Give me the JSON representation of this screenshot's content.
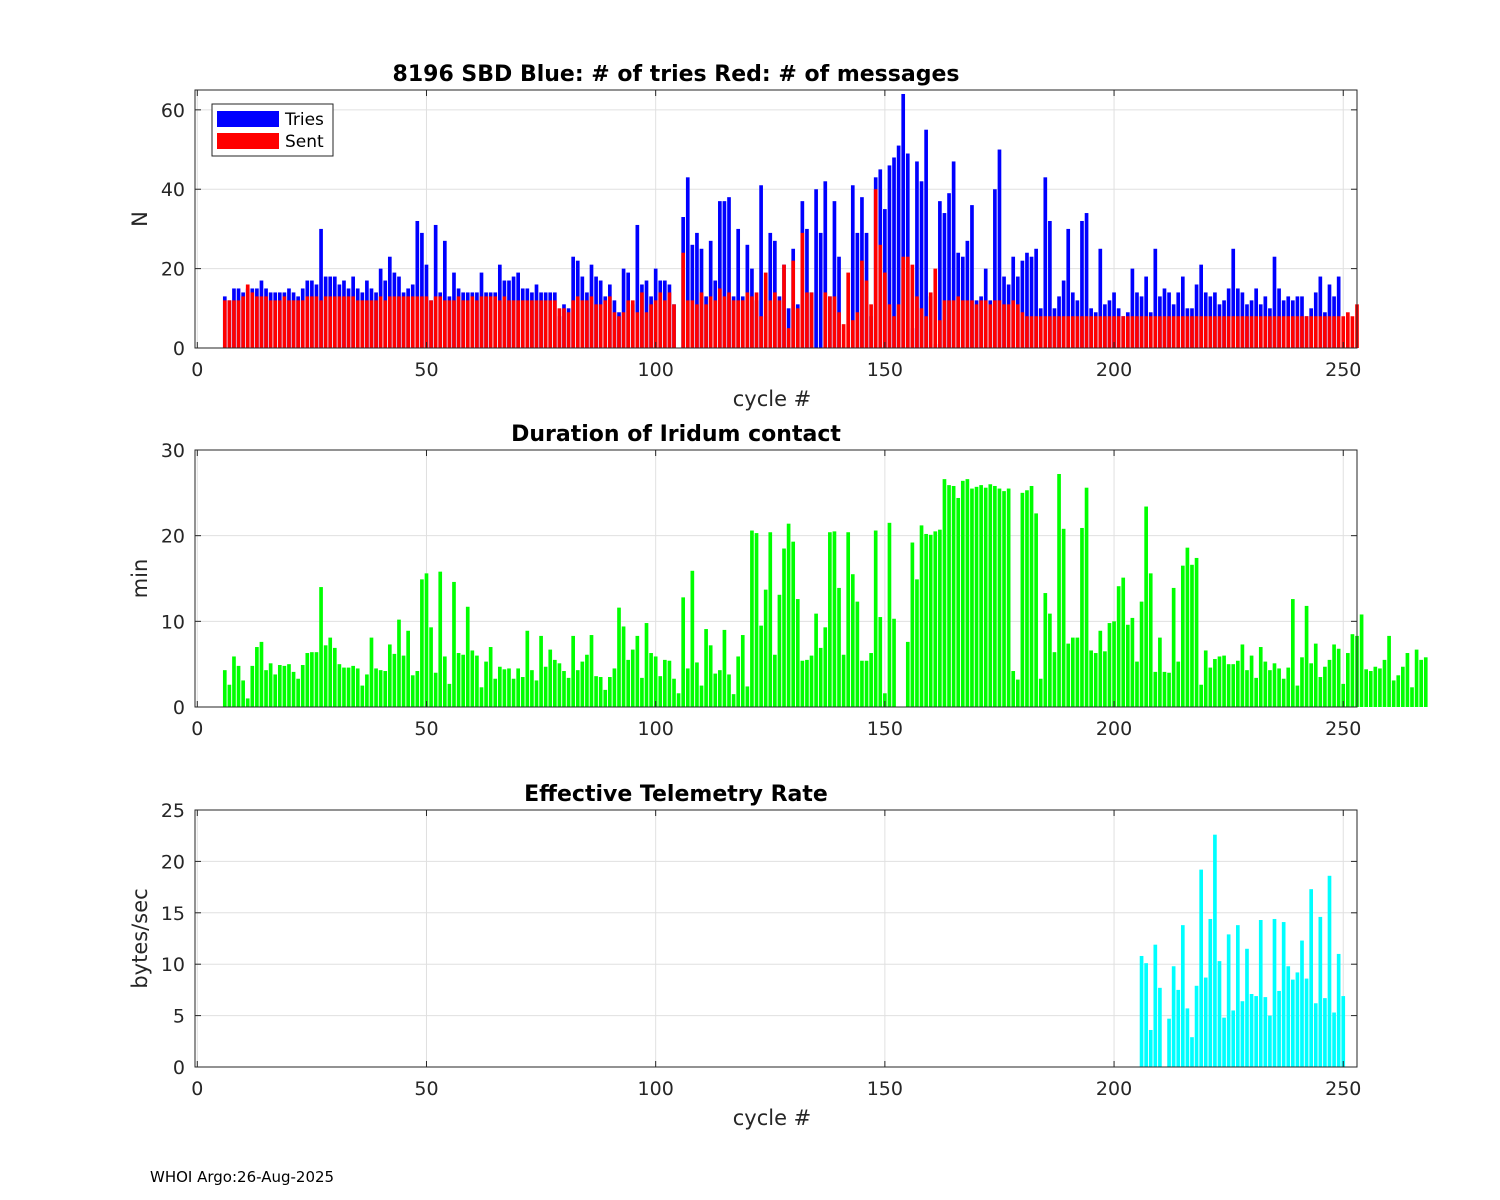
{
  "footer": "WHOI Argo:26-Aug-2025",
  "colors": {
    "tries": "#0000ff",
    "sent": "#ff0000",
    "duration": "#00ff00",
    "rate": "#00ffff"
  },
  "chart_data": [
    {
      "type": "bar",
      "title": "8196 SBD  Blue: # of tries   Red: # of messages",
      "xlabel": "cycle #",
      "ylabel": "N",
      "xlim": [
        -0.5,
        253
      ],
      "ylim": [
        0,
        65
      ],
      "xticks": [
        0,
        50,
        100,
        150,
        200,
        250
      ],
      "yticks": [
        0,
        20,
        40,
        60
      ],
      "grid": true,
      "legend": {
        "placement": "top-left",
        "entries": [
          "Tries",
          "Sent"
        ]
      },
      "x_start": 6,
      "series": [
        {
          "name": "Tries",
          "color": "#0000ff",
          "values": [
            13,
            12,
            15,
            15,
            14,
            15,
            15,
            15,
            17,
            15,
            14,
            14,
            14,
            14,
            15,
            14,
            13,
            15,
            17,
            17,
            16,
            30,
            18,
            18,
            18,
            16,
            17,
            15,
            18,
            15,
            14,
            17,
            15,
            14,
            20,
            17,
            23,
            19,
            18,
            14,
            15,
            16,
            32,
            29,
            21,
            12,
            31,
            14,
            27,
            13,
            19,
            15,
            14,
            14,
            14,
            14,
            19,
            14,
            14,
            14,
            21,
            17,
            17,
            18,
            19,
            15,
            15,
            14,
            16,
            14,
            14,
            14,
            14,
            8,
            11,
            10,
            23,
            22,
            18,
            14,
            21,
            18,
            17,
            13,
            16,
            12,
            9,
            20,
            19,
            11,
            31,
            16,
            17,
            13,
            20,
            17,
            17,
            16,
            11,
            0,
            33,
            43,
            26,
            29,
            25,
            13,
            27,
            17,
            37,
            37,
            38,
            13,
            30,
            13,
            26,
            20,
            12,
            41,
            8,
            29,
            27,
            13,
            21,
            10,
            25,
            11,
            37,
            30,
            14,
            40,
            29,
            42,
            13,
            37,
            23,
            0,
            0,
            41,
            29,
            38,
            29,
            8,
            43,
            45,
            35,
            46,
            48,
            51,
            64,
            49,
            5,
            47,
            42,
            55,
            13,
            1,
            37,
            34,
            39,
            47,
            24,
            23,
            27,
            36,
            12,
            13,
            20,
            12,
            40,
            50,
            18,
            16,
            23,
            18,
            22,
            24,
            23,
            25,
            10,
            43,
            32,
            10,
            13,
            17,
            30,
            14,
            12,
            32,
            34,
            10,
            9,
            25,
            11,
            12,
            14,
            10,
            8,
            9,
            20,
            14,
            13,
            18,
            9,
            25,
            13,
            15,
            14,
            11,
            14,
            18,
            10,
            10,
            16,
            21,
            14,
            13,
            14,
            11,
            12,
            15,
            25,
            15,
            14,
            11,
            12,
            15,
            11,
            13,
            10,
            23,
            15,
            12,
            13,
            12,
            13,
            13,
            8,
            10,
            14,
            18,
            9,
            16,
            13,
            18
          ]
        },
        {
          "name": "Sent",
          "color": "#ff0000",
          "values": [
            12,
            12,
            12,
            12,
            13,
            16,
            14,
            13,
            13,
            13,
            12,
            12,
            12,
            13,
            12,
            12,
            12,
            12,
            13,
            13,
            13,
            12,
            13,
            13,
            13,
            13,
            13,
            13,
            13,
            12,
            12,
            12,
            12,
            12,
            13,
            12,
            13,
            13,
            13,
            13,
            13,
            13,
            13,
            13,
            13,
            12,
            13,
            13,
            12,
            12,
            12,
            13,
            12,
            12,
            13,
            12,
            13,
            13,
            13,
            13,
            12,
            13,
            12,
            12,
            12,
            12,
            12,
            12,
            12,
            12,
            12,
            12,
            12,
            10,
            10,
            9,
            12,
            13,
            12,
            12,
            13,
            11,
            11,
            12,
            13,
            9,
            8,
            9,
            12,
            12,
            9,
            14,
            9,
            11,
            12,
            14,
            12,
            14,
            11,
            0,
            24,
            12,
            12,
            11,
            14,
            11,
            13,
            12,
            15,
            13,
            14,
            12,
            12,
            12,
            14,
            13,
            14,
            8,
            19,
            12,
            14,
            12,
            21,
            5,
            22,
            10,
            29,
            14,
            14,
            0,
            0,
            14,
            13,
            13,
            9,
            6,
            19,
            7,
            9,
            22,
            17,
            11,
            40,
            26,
            19,
            11,
            8,
            11,
            23,
            23,
            21,
            13,
            10,
            8,
            14,
            20,
            7,
            12,
            12,
            12,
            13,
            12,
            12,
            12,
            11,
            12,
            12,
            11,
            12,
            12,
            11,
            11,
            12,
            11,
            9,
            8,
            8,
            8,
            8,
            8,
            8,
            8,
            8,
            8,
            8,
            8,
            8,
            8,
            8,
            8,
            8,
            8,
            8,
            8,
            8,
            8,
            8,
            8,
            8,
            8,
            8,
            8,
            8,
            8,
            8,
            8,
            8,
            8,
            8,
            8,
            8,
            8,
            8,
            8,
            8,
            8,
            8,
            8,
            8,
            8,
            8,
            8,
            8,
            8,
            8,
            8,
            8,
            8,
            8,
            8,
            8,
            8,
            8,
            8,
            8,
            8,
            8,
            8,
            8,
            8,
            8,
            8,
            8,
            8,
            8,
            9,
            8,
            11
          ]
        }
      ]
    },
    {
      "type": "bar",
      "title": "Duration of Iridum contact",
      "xlabel": "",
      "ylabel": "min",
      "xlim": [
        -0.5,
        253
      ],
      "ylim": [
        0,
        30
      ],
      "xticks": [
        0,
        50,
        100,
        150,
        200,
        250
      ],
      "yticks": [
        0,
        10,
        20,
        30
      ],
      "grid": true,
      "x_start": 6,
      "series": [
        {
          "name": "Duration",
          "color": "#00ff00",
          "values": [
            4.3,
            2.6,
            5.9,
            4.8,
            3.1,
            1.0,
            4.8,
            7.0,
            7.6,
            4.3,
            5.1,
            3.8,
            4.9,
            4.8,
            5.0,
            4.1,
            3.3,
            4.9,
            6.3,
            6.4,
            6.4,
            14.0,
            7.2,
            8.1,
            6.9,
            5.0,
            4.6,
            4.6,
            4.8,
            4.5,
            2.5,
            3.8,
            8.1,
            4.5,
            4.3,
            4.2,
            7.3,
            6.2,
            10.2,
            6.0,
            8.9,
            3.7,
            4.2,
            14.9,
            15.6,
            9.3,
            4.0,
            15.8,
            5.9,
            2.7,
            14.6,
            6.3,
            6.1,
            11.7,
            6.6,
            6.0,
            2.3,
            5.3,
            7.0,
            3.3,
            4.7,
            4.4,
            4.5,
            3.3,
            4.5,
            3.5,
            8.9,
            4.3,
            3.1,
            8.3,
            4.7,
            6.7,
            5.5,
            5.1,
            4.2,
            3.4,
            8.3,
            4.3,
            5.3,
            6.1,
            8.4,
            3.6,
            3.5,
            2.0,
            3.5,
            4.5,
            11.6,
            9.4,
            5.5,
            6.7,
            8.3,
            3.4,
            9.8,
            6.3,
            5.9,
            3.6,
            5.5,
            5.4,
            3.3,
            1.6,
            12.8,
            4.5,
            15.9,
            5.2,
            2.5,
            9.1,
            7.2,
            3.9,
            4.3,
            9.0,
            3.8,
            1.5,
            5.9,
            8.4,
            2.4,
            20.6,
            20.3,
            9.5,
            13.7,
            20.4,
            6.1,
            13.1,
            18.5,
            21.4,
            19.3,
            12.6,
            5.4,
            5.5,
            6.0,
            10.9,
            6.9,
            9.3,
            20.4,
            20.5,
            13.9,
            6.1,
            20.4,
            15.5,
            12.3,
            5.4,
            5.4,
            6.3,
            20.6,
            10.5,
            1.6,
            21.5,
            10.3,
            0,
            0,
            7.6,
            19.2,
            14.9,
            21.2,
            20.2,
            20.1,
            20.5,
            20.7,
            26.6,
            25.9,
            25.8,
            24.4,
            26.4,
            26.6,
            25.5,
            25.7,
            25.9,
            25.6,
            26.0,
            25.8,
            25.5,
            25.2,
            25.5,
            4.2,
            3.2,
            25.0,
            25.3,
            25.8,
            22.6,
            3.3,
            13.3,
            10.9,
            6.4,
            27.2,
            20.8,
            7.4,
            8.1,
            8.1,
            20.9,
            25.6,
            6.6,
            6.3,
            8.9,
            6.5,
            9.8,
            10.0,
            14.1,
            15.1,
            9.6,
            10.4,
            5.3,
            12.3,
            23.4,
            15.6,
            4.1,
            8.1,
            4.1,
            4.0,
            13.9,
            5.3,
            16.5,
            18.6,
            16.6,
            17.4,
            2.6,
            6.6,
            4.6,
            5.6,
            5.9,
            6.0,
            5.0,
            5.0,
            5.4,
            7.3,
            4.3,
            6.0,
            3.4,
            7.0,
            5.3,
            4.3,
            5.1,
            4.5,
            3.3,
            4.6,
            12.6,
            2.5,
            5.8,
            11.8,
            5.1,
            7.4,
            3.5,
            4.7,
            5.5,
            7.3,
            6.8,
            2.7,
            6.3,
            8.5,
            8.3,
            10.8,
            4.4,
            4.2,
            4.7,
            4.5,
            5.5,
            8.3,
            3.1,
            3.7,
            4.7,
            6.3,
            2.3,
            6.7,
            5.5,
            5.8
          ]
        }
      ]
    },
    {
      "type": "bar",
      "title": "Effective Telemetry Rate",
      "xlabel": "cycle #",
      "ylabel": "bytes/sec",
      "xlim": [
        -0.5,
        253
      ],
      "ylim": [
        0,
        25
      ],
      "xticks": [
        0,
        50,
        100,
        150,
        200,
        250
      ],
      "yticks": [
        0,
        5,
        10,
        15,
        20,
        25
      ],
      "grid": true,
      "x_start": 206,
      "series": [
        {
          "name": "Rate",
          "color": "#00ffff",
          "values": [
            10.8,
            10.1,
            3.6,
            11.9,
            7.7,
            0,
            4.7,
            9.8,
            7.5,
            13.8,
            5.7,
            2.9,
            7.9,
            19.2,
            8.7,
            14.4,
            22.6,
            10.3,
            4.8,
            12.9,
            5.5,
            13.8,
            6.4,
            11.5,
            7.1,
            6.9,
            14.3,
            6.8,
            5.0,
            14.4,
            7.4,
            14.1,
            9.8,
            8.5,
            9.2,
            12.3,
            8.6,
            17.3,
            6.2,
            14.6,
            6.7,
            18.6,
            5.3,
            11.0,
            6.9
          ]
        }
      ]
    }
  ]
}
